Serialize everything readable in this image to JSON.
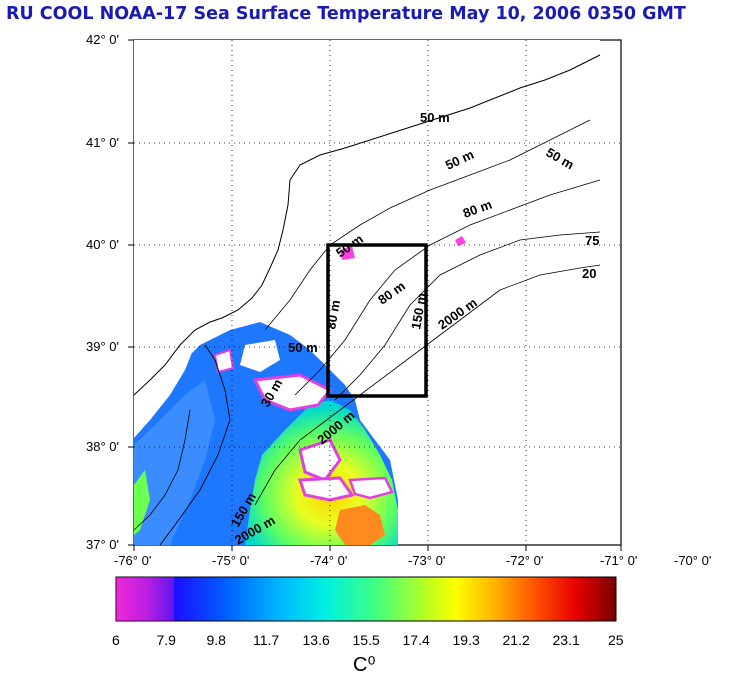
{
  "title": "RU COOL  NOAA-17 Sea Surface Temperature May 10, 2006 0350 GMT",
  "lat_labels": [
    "42° 0'",
    "41° 0'",
    "40° 0'",
    "39° 0'",
    "38° 0'",
    "37° 0'"
  ],
  "lon_labels": [
    "-76° 0'",
    "-75° 0'",
    "-74° 0'",
    "-73° 0'",
    "-72° 0'",
    "-71° 0'",
    "-70° 0'"
  ],
  "contour_labels": [
    "50 m",
    "50 m",
    "50 m",
    "80 m",
    "80 m",
    "50 m",
    "80 m",
    "150 m",
    "2000 m",
    "50 m",
    "30 m",
    "75",
    "20",
    "150 m",
    "2000 m",
    "2000 m"
  ],
  "colorbar": {
    "ticks": [
      "6",
      "7.9",
      "9.8",
      "11.7",
      "13.6",
      "15.5",
      "17.4",
      "19.3",
      "21.2",
      "23.1",
      "25"
    ],
    "unit": "C⁰",
    "min": 6,
    "max": 25
  },
  "colors": {
    "title": "#1a1ab4",
    "ocean_cool": "#1e78ff",
    "ocean_warm": "#f0e628",
    "land": "#ffffff",
    "box": "#000000"
  }
}
